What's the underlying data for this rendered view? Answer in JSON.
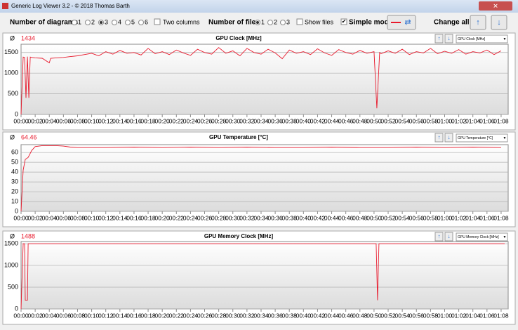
{
  "window": {
    "title": "Generic Log Viewer 3.2 - © 2018 Thomas Barth"
  },
  "toolbar": {
    "diagrams_label": "Number of diagrams",
    "diagram_options": [
      "1",
      "2",
      "3",
      "4",
      "5",
      "6"
    ],
    "diagrams_selected": "3",
    "two_columns": "Two columns",
    "files_label": "Number of files",
    "file_options": [
      "1",
      "2",
      "3"
    ],
    "files_selected": "1",
    "show_files": "Show files",
    "simple_mode": "Simple mode",
    "change_all": "Change all"
  },
  "chart_data": [
    {
      "type": "line",
      "title": "GPU Clock [MHz]",
      "avg_symbol": "Ø",
      "average": 1434,
      "dropdown": "GPU Clock [MHz]",
      "color": "#e8192c",
      "x": [
        0,
        0.3,
        0.5,
        0.7,
        0.9,
        1.1,
        1.3,
        1.5,
        2,
        3,
        4,
        4.2,
        5,
        6,
        7,
        8,
        9,
        10,
        11,
        12,
        13,
        14,
        15,
        16,
        17,
        18,
        19,
        20,
        21,
        22,
        23,
        24,
        25,
        26,
        27,
        28,
        29,
        30,
        31,
        32,
        33,
        34,
        35,
        36,
        37,
        38,
        39,
        40,
        41,
        42,
        43,
        44,
        45,
        46,
        47,
        48,
        49,
        50,
        50.4,
        50.8,
        51,
        52,
        53,
        54,
        55,
        56,
        57,
        58,
        59,
        60,
        61,
        62,
        63,
        64,
        65,
        66,
        67,
        68
      ],
      "values": [
        0,
        1390,
        1380,
        400,
        1400,
        400,
        1390,
        1380,
        1370,
        1360,
        1250,
        1360,
        1370,
        1380,
        1400,
        1420,
        1450,
        1480,
        1420,
        1520,
        1460,
        1550,
        1480,
        1500,
        1440,
        1600,
        1470,
        1520,
        1450,
        1560,
        1490,
        1430,
        1580,
        1500,
        1460,
        1620,
        1480,
        1540,
        1420,
        1600,
        1500,
        1460,
        1580,
        1490,
        1350,
        1560,
        1480,
        1520,
        1450,
        1590,
        1490,
        1430,
        1570,
        1500,
        1460,
        1550,
        1480,
        1520,
        150,
        1500,
        1470,
        1540,
        1480,
        1580,
        1450,
        1520,
        1490,
        1600,
        1470,
        1530,
        1480,
        1570,
        1460,
        1520,
        1490,
        1560,
        1450,
        1540
      ],
      "xlim": [
        0,
        69
      ],
      "ylim": [
        0,
        1700
      ],
      "yticks": [
        0,
        500,
        1000,
        1500
      ],
      "xticks": [
        {
          "value": 0,
          "label": "00:00"
        },
        {
          "value": 2,
          "label": "00:02"
        },
        {
          "value": 4,
          "label": "00:04"
        },
        {
          "value": 6,
          "label": "00:06"
        },
        {
          "value": 8,
          "label": "00:08"
        },
        {
          "value": 10,
          "label": "00:10"
        },
        {
          "value": 12,
          "label": "00:12"
        },
        {
          "value": 14,
          "label": "00:14"
        },
        {
          "value": 16,
          "label": "00:16"
        },
        {
          "value": 18,
          "label": "00:18"
        },
        {
          "value": 20,
          "label": "00:20"
        },
        {
          "value": 22,
          "label": "00:22"
        },
        {
          "value": 24,
          "label": "00:24"
        },
        {
          "value": 26,
          "label": "00:26"
        },
        {
          "value": 28,
          "label": "00:28"
        },
        {
          "value": 30,
          "label": "00:30"
        },
        {
          "value": 32,
          "label": "00:32"
        },
        {
          "value": 34,
          "label": "00:34"
        },
        {
          "value": 36,
          "label": "00:36"
        },
        {
          "value": 38,
          "label": "00:38"
        },
        {
          "value": 40,
          "label": "00:40"
        },
        {
          "value": 42,
          "label": "00:42"
        },
        {
          "value": 44,
          "label": "00:44"
        },
        {
          "value": 46,
          "label": "00:46"
        },
        {
          "value": 48,
          "label": "00:48"
        },
        {
          "value": 50,
          "label": "00:50"
        },
        {
          "value": 52,
          "label": "00:52"
        },
        {
          "value": 54,
          "label": "00:54"
        },
        {
          "value": 56,
          "label": "00:56"
        },
        {
          "value": 58,
          "label": "00:58"
        },
        {
          "value": 60,
          "label": "01:00"
        },
        {
          "value": 62,
          "label": "01:02"
        },
        {
          "value": 64,
          "label": "01:04"
        },
        {
          "value": 66,
          "label": "01:06"
        },
        {
          "value": 68,
          "label": "01:08"
        }
      ],
      "grid": true
    },
    {
      "type": "line",
      "title": "GPU Temperature [°C]",
      "avg_symbol": "Ø",
      "average": 64.46,
      "dropdown": "GPU Temperature [°C]",
      "color": "#e8192c",
      "x": [
        0,
        0.3,
        0.6,
        1,
        1.5,
        2,
        3,
        4,
        5,
        6,
        7,
        8,
        12,
        16,
        20,
        24,
        28,
        32,
        36,
        40,
        44,
        48,
        52,
        56,
        60,
        64,
        68
      ],
      "values": [
        0,
        42,
        53,
        55,
        62,
        66,
        67,
        67,
        67,
        66.5,
        65.5,
        65,
        65,
        65.5,
        65,
        65.5,
        65,
        65.5,
        65,
        65,
        65.5,
        65,
        65,
        65.5,
        65,
        65.5,
        65
      ],
      "xlim": [
        0,
        69
      ],
      "ylim": [
        0,
        68
      ],
      "yticks": [
        0,
        10,
        20,
        30,
        40,
        50,
        60
      ],
      "xticks": [
        {
          "value": 0,
          "label": "00:00"
        },
        {
          "value": 2,
          "label": "00:02"
        },
        {
          "value": 4,
          "label": "00:04"
        },
        {
          "value": 6,
          "label": "00:06"
        },
        {
          "value": 8,
          "label": "00:08"
        },
        {
          "value": 10,
          "label": "00:10"
        },
        {
          "value": 12,
          "label": "00:12"
        },
        {
          "value": 14,
          "label": "00:14"
        },
        {
          "value": 16,
          "label": "00:16"
        },
        {
          "value": 18,
          "label": "00:18"
        },
        {
          "value": 20,
          "label": "00:20"
        },
        {
          "value": 22,
          "label": "00:22"
        },
        {
          "value": 24,
          "label": "00:24"
        },
        {
          "value": 26,
          "label": "00:26"
        },
        {
          "value": 28,
          "label": "00:28"
        },
        {
          "value": 30,
          "label": "00:30"
        },
        {
          "value": 32,
          "label": "00:32"
        },
        {
          "value": 34,
          "label": "00:34"
        },
        {
          "value": 36,
          "label": "00:36"
        },
        {
          "value": 38,
          "label": "00:38"
        },
        {
          "value": 40,
          "label": "00:40"
        },
        {
          "value": 42,
          "label": "00:42"
        },
        {
          "value": 44,
          "label": "00:44"
        },
        {
          "value": 46,
          "label": "00:46"
        },
        {
          "value": 48,
          "label": "00:48"
        },
        {
          "value": 50,
          "label": "00:50"
        },
        {
          "value": 52,
          "label": "00:52"
        },
        {
          "value": 54,
          "label": "00:54"
        },
        {
          "value": 56,
          "label": "00:56"
        },
        {
          "value": 58,
          "label": "00:58"
        },
        {
          "value": 60,
          "label": "01:00"
        },
        {
          "value": 62,
          "label": "01:02"
        },
        {
          "value": 64,
          "label": "01:04"
        },
        {
          "value": 66,
          "label": "01:06"
        },
        {
          "value": 68,
          "label": "01:08"
        }
      ],
      "grid": true
    },
    {
      "type": "line",
      "title": "GPU Memory Clock [MHz]",
      "avg_symbol": "Ø",
      "average": 1488,
      "dropdown": "GPU Memory Clock [MHz]",
      "color": "#e8192c",
      "x": [
        0,
        0.3,
        0.5,
        0.6,
        0.9,
        1,
        1.2,
        50.3,
        50.5,
        50.7,
        68.5
      ],
      "values": [
        0,
        1500,
        1500,
        200,
        200,
        1500,
        1500,
        1500,
        200,
        1500,
        1500
      ],
      "xlim": [
        0,
        69
      ],
      "ylim": [
        0,
        1550
      ],
      "yticks": [
        0,
        500,
        1000,
        1500
      ],
      "xticks": [
        {
          "value": 0,
          "label": "00:00"
        },
        {
          "value": 2,
          "label": "00:02"
        },
        {
          "value": 4,
          "label": "00:04"
        },
        {
          "value": 6,
          "label": "00:06"
        },
        {
          "value": 8,
          "label": "00:08"
        },
        {
          "value": 10,
          "label": "00:10"
        },
        {
          "value": 12,
          "label": "00:12"
        },
        {
          "value": 14,
          "label": "00:14"
        },
        {
          "value": 16,
          "label": "00:16"
        },
        {
          "value": 18,
          "label": "00:18"
        },
        {
          "value": 20,
          "label": "00:20"
        },
        {
          "value": 22,
          "label": "00:22"
        },
        {
          "value": 24,
          "label": "00:24"
        },
        {
          "value": 26,
          "label": "00:26"
        },
        {
          "value": 28,
          "label": "00:28"
        },
        {
          "value": 30,
          "label": "00:30"
        },
        {
          "value": 32,
          "label": "00:32"
        },
        {
          "value": 34,
          "label": "00:34"
        },
        {
          "value": 36,
          "label": "00:36"
        },
        {
          "value": 38,
          "label": "00:38"
        },
        {
          "value": 40,
          "label": "00:40"
        },
        {
          "value": 42,
          "label": "00:42"
        },
        {
          "value": 44,
          "label": "00:44"
        },
        {
          "value": 46,
          "label": "00:46"
        },
        {
          "value": 48,
          "label": "00:48"
        },
        {
          "value": 50,
          "label": "00:50"
        },
        {
          "value": 52,
          "label": "00:52"
        },
        {
          "value": 54,
          "label": "00:54"
        },
        {
          "value": 56,
          "label": "00:56"
        },
        {
          "value": 58,
          "label": "00:58"
        },
        {
          "value": 60,
          "label": "01:00"
        },
        {
          "value": 62,
          "label": "01:02"
        },
        {
          "value": 64,
          "label": "01:04"
        },
        {
          "value": 66,
          "label": "01:06"
        },
        {
          "value": 68,
          "label": "01:08"
        }
      ],
      "grid": true
    }
  ]
}
